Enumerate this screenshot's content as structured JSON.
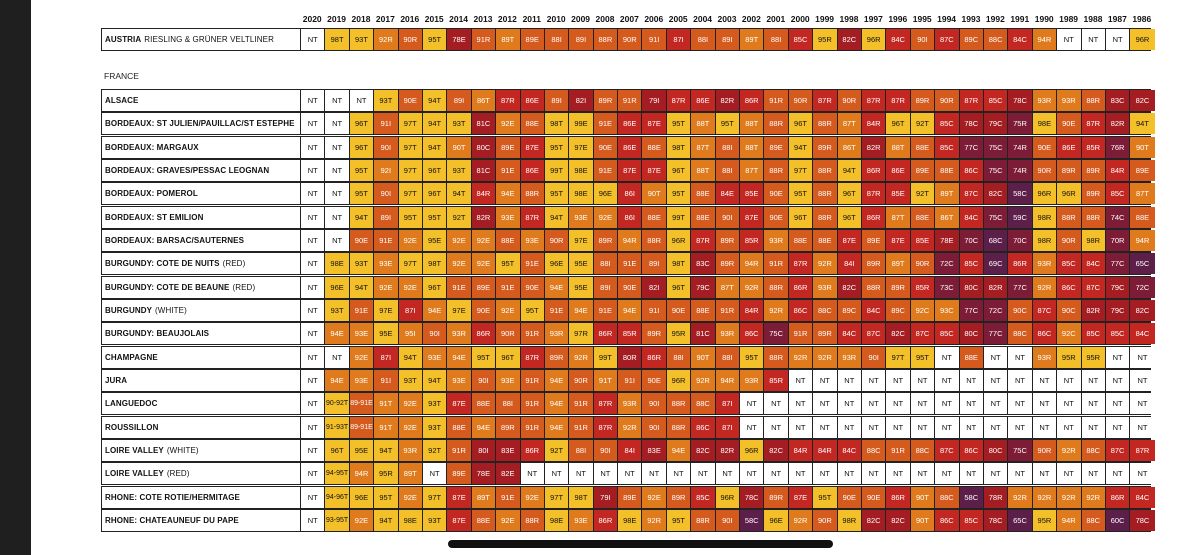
{
  "years": [
    "2020",
    "2019",
    "2018",
    "2017",
    "2016",
    "2015",
    "2014",
    "2013",
    "2012",
    "2011",
    "2010",
    "2009",
    "2008",
    "2007",
    "2006",
    "2005",
    "2004",
    "2003",
    "2002",
    "2001",
    "2000",
    "1999",
    "1998",
    "1997",
    "1996",
    "1995",
    "1994",
    "1993",
    "1992",
    "1991",
    "1990",
    "1989",
    "1988",
    "1987",
    "1986"
  ],
  "sections": {
    "austria": {
      "label": "AUSTRIA",
      "sublabel": "RIESLING & GRÜNER VELTLINER"
    },
    "france": {
      "label": "FRANCE"
    }
  },
  "rows": [
    {
      "name": "ALSACE",
      "sub": "",
      "cells": [
        "NT",
        "NT",
        "NT",
        "93T",
        "90E",
        "94T",
        "89I",
        "86T",
        "87R",
        "86E",
        "89I",
        "82I",
        "89R",
        "91R",
        "79I",
        "87R",
        "86E",
        "82R",
        "86R",
        "91R",
        "90R",
        "87R",
        "90R",
        "87R",
        "87R",
        "89R",
        "90R",
        "87R",
        "85C",
        "78C",
        "93R",
        "93R",
        "88R",
        "83C",
        "82C"
      ]
    },
    {
      "name": "BORDEAUX: ST JULIEN/PAUILLAC/ST ESTEPHE",
      "sub": "",
      "cells": [
        "NT",
        "NT",
        "96T",
        "91I",
        "97T",
        "94T",
        "93T",
        "81C",
        "92E",
        "88E",
        "98T",
        "99E",
        "91E",
        "86E",
        "87E",
        "95T",
        "88T",
        "95T",
        "88T",
        "88R",
        "96T",
        "88R",
        "87T",
        "84R",
        "96T",
        "92T",
        "85C",
        "78C",
        "79C",
        "75R",
        "98E",
        "90E",
        "87R",
        "82R",
        "94T"
      ]
    },
    {
      "name": "BORDEAUX: MARGAUX",
      "sub": "",
      "cells": [
        "NT",
        "NT",
        "96T",
        "90I",
        "97T",
        "94T",
        "90T",
        "80C",
        "89E",
        "87E",
        "95T",
        "97E",
        "90E",
        "86E",
        "88E",
        "98T",
        "87T",
        "88I",
        "88T",
        "89E",
        "94T",
        "89R",
        "86T",
        "82R",
        "88T",
        "88E",
        "85C",
        "77C",
        "75C",
        "74R",
        "90E",
        "86E",
        "85R",
        "76R",
        "90T"
      ]
    },
    {
      "name": "BORDEAUX: GRAVES/PESSAC LEOGNAN",
      "sub": "",
      "cells": [
        "NT",
        "NT",
        "95T",
        "92I",
        "97T",
        "96T",
        "93T",
        "81C",
        "91E",
        "86E",
        "99T",
        "98E",
        "91E",
        "87E",
        "87E",
        "96T",
        "88T",
        "88I",
        "87T",
        "88R",
        "97T",
        "88R",
        "94T",
        "86R",
        "86E",
        "89E",
        "88E",
        "86C",
        "75C",
        "74R",
        "90R",
        "89R",
        "89R",
        "84R",
        "89E"
      ]
    },
    {
      "name": "BORDEAUX: POMEROL",
      "sub": "",
      "cells": [
        "NT",
        "NT",
        "95T",
        "90I",
        "97T",
        "96T",
        "94T",
        "84R",
        "94E",
        "88R",
        "95T",
        "98E",
        "96E",
        "86I",
        "90T",
        "95T",
        "88E",
        "84E",
        "85E",
        "90E",
        "95T",
        "88R",
        "96T",
        "87R",
        "85E",
        "92T",
        "89T",
        "87C",
        "82C",
        "58C",
        "96R",
        "96R",
        "89R",
        "85C",
        "87T"
      ]
    },
    {
      "name": "BORDEAUX: ST EMILION",
      "sub": "",
      "cells": [
        "NT",
        "NT",
        "94T",
        "89I",
        "95T",
        "95T",
        "92T",
        "82R",
        "93E",
        "87R",
        "94T",
        "93E",
        "92E",
        "86I",
        "88E",
        "99T",
        "88E",
        "90I",
        "87E",
        "90E",
        "96T",
        "88R",
        "96T",
        "86R",
        "87T",
        "88E",
        "86T",
        "84C",
        "75C",
        "59C",
        "98R",
        "88R",
        "88R",
        "74C",
        "88E"
      ]
    },
    {
      "name": "BORDEAUX: BARSAC/SAUTERNES",
      "sub": "",
      "cells": [
        "NT",
        "NT",
        "90E",
        "91E",
        "92E",
        "95E",
        "92E",
        "92E",
        "88E",
        "93E",
        "90R",
        "97E",
        "89R",
        "94R",
        "88R",
        "96R",
        "87R",
        "89R",
        "85R",
        "93R",
        "88E",
        "88E",
        "87E",
        "89E",
        "87E",
        "85E",
        "78E",
        "70C",
        "68C",
        "70C",
        "98R",
        "90R",
        "98R",
        "70R",
        "94R"
      ]
    },
    {
      "name": "BURGUNDY: COTE DE NUITS",
      "sub": "(RED)",
      "cells": [
        "NT",
        "98E",
        "93T",
        "93E",
        "97T",
        "98T",
        "92E",
        "92E",
        "95T",
        "91E",
        "96E",
        "95E",
        "88I",
        "91E",
        "89I",
        "98T",
        "83C",
        "89R",
        "94R",
        "91R",
        "87R",
        "92R",
        "84I",
        "89R",
        "89T",
        "90R",
        "72C",
        "85C",
        "69C",
        "86R",
        "93R",
        "85C",
        "84C",
        "77C",
        "65C"
      ]
    },
    {
      "name": "BURGUNDY: COTE DE BEAUNE",
      "sub": "(RED)",
      "cells": [
        "NT",
        "96E",
        "94T",
        "92E",
        "92E",
        "96T",
        "91E",
        "89E",
        "91E",
        "90E",
        "94E",
        "95E",
        "89I",
        "90E",
        "82I",
        "96T",
        "79C",
        "87T",
        "92R",
        "88R",
        "86R",
        "93R",
        "82C",
        "88R",
        "89R",
        "85R",
        "73C",
        "80C",
        "82R",
        "77C",
        "92R",
        "86C",
        "87C",
        "79C",
        "72C"
      ]
    },
    {
      "name": "BURGUNDY",
      "sub": "(WHITE)",
      "cells": [
        "NT",
        "93T",
        "91E",
        "97E",
        "87I",
        "94E",
        "97E",
        "90E",
        "92E",
        "95T",
        "91E",
        "94E",
        "91E",
        "94E",
        "91I",
        "90E",
        "88E",
        "91R",
        "84R",
        "92R",
        "86C",
        "88C",
        "89C",
        "84C",
        "89C",
        "92C",
        "93C",
        "77C",
        "72C",
        "90C",
        "87C",
        "90C",
        "82R",
        "79C",
        "82C"
      ]
    },
    {
      "name": "BURGUNDY: BEAUJOLAIS",
      "sub": "",
      "cells": [
        "NT",
        "94E",
        "93E",
        "95E",
        "95I",
        "90I",
        "93R",
        "86R",
        "90R",
        "91R",
        "93R",
        "97R",
        "86R",
        "85R",
        "89R",
        "95R",
        "81C",
        "93R",
        "86C",
        "75C",
        "91R",
        "89R",
        "84C",
        "87C",
        "82C",
        "87C",
        "85C",
        "80C",
        "77C",
        "88C",
        "86C",
        "92C",
        "85C",
        "85C",
        "84C"
      ]
    },
    {
      "name": "CHAMPAGNE",
      "sub": "",
      "cells": [
        "NT",
        "NT",
        "92E",
        "87I",
        "94T",
        "93E",
        "94E",
        "95T",
        "96T",
        "87R",
        "89R",
        "92R",
        "99T",
        "80R",
        "86R",
        "88I",
        "90T",
        "88I",
        "95T",
        "88R",
        "92R",
        "92R",
        "93R",
        "90I",
        "97T",
        "95T",
        "NT",
        "88E",
        "NT",
        "NT",
        "93R",
        "95R",
        "95R",
        "NT",
        "NT"
      ]
    },
    {
      "name": "JURA",
      "sub": "",
      "cells": [
        "NT",
        "94E",
        "93E",
        "91I",
        "93T",
        "94T",
        "93E",
        "90I",
        "93E",
        "91R",
        "94E",
        "90R",
        "91T",
        "91I",
        "90E",
        "96R",
        "92R",
        "94R",
        "93R",
        "85R",
        "NT",
        "NT",
        "NT",
        "NT",
        "NT",
        "NT",
        "NT",
        "NT",
        "NT",
        "NT",
        "NT",
        "NT",
        "NT",
        "NT",
        "NT"
      ]
    },
    {
      "name": "LANGUEDOC",
      "sub": "",
      "cells": [
        "NT",
        "90-92T",
        "89-91E",
        "91T",
        "92E",
        "93T",
        "87E",
        "88E",
        "88I",
        "91R",
        "94E",
        "91R",
        "87R",
        "93R",
        "90I",
        "88R",
        "88C",
        "87I",
        "NT",
        "NT",
        "NT",
        "NT",
        "NT",
        "NT",
        "NT",
        "NT",
        "NT",
        "NT",
        "NT",
        "NT",
        "NT",
        "NT",
        "NT",
        "NT",
        "NT"
      ]
    },
    {
      "name": "ROUSSILLON",
      "sub": "",
      "cells": [
        "NT",
        "91-93T",
        "89-91E",
        "91T",
        "92E",
        "93T",
        "88E",
        "94E",
        "89R",
        "91R",
        "94E",
        "91R",
        "87R",
        "92R",
        "90I",
        "88R",
        "86C",
        "87I",
        "NT",
        "NT",
        "NT",
        "NT",
        "NT",
        "NT",
        "NT",
        "NT",
        "NT",
        "NT",
        "NT",
        "NT",
        "NT",
        "NT",
        "NT",
        "NT",
        "NT"
      ]
    },
    {
      "name": "LOIRE VALLEY",
      "sub": "(WHITE)",
      "cells": [
        "NT",
        "96T",
        "95E",
        "94T",
        "93R",
        "92T",
        "91R",
        "80I",
        "83E",
        "86R",
        "92T",
        "88I",
        "90I",
        "84I",
        "83E",
        "94E",
        "82C",
        "82R",
        "96R",
        "82C",
        "84R",
        "84R",
        "84C",
        "88C",
        "91R",
        "88C",
        "87C",
        "86C",
        "80C",
        "75C",
        "90R",
        "92R",
        "88C",
        "87C",
        "87R"
      ]
    },
    {
      "name": "LOIRE VALLEY",
      "sub": "(RED)",
      "cells": [
        "NT",
        "94-95T",
        "94R",
        "95R",
        "89T",
        "NT",
        "89E",
        "78E",
        "82E",
        "NT",
        "NT",
        "NT",
        "NT",
        "NT",
        "NT",
        "NT",
        "NT",
        "NT",
        "NT",
        "NT",
        "NT",
        "NT",
        "NT",
        "NT",
        "NT",
        "NT",
        "NT",
        "NT",
        "NT",
        "NT",
        "NT",
        "NT",
        "NT",
        "NT",
        "NT"
      ]
    },
    {
      "name": "RHONE: COTE ROTIE/HERMITAGE",
      "sub": "",
      "cells": [
        "NT",
        "94-96T",
        "96E",
        "95T",
        "92E",
        "97T",
        "87E",
        "89T",
        "91E",
        "92E",
        "97T",
        "98T",
        "79I",
        "89E",
        "92E",
        "89R",
        "85C",
        "96R",
        "78C",
        "89R",
        "87E",
        "95T",
        "90E",
        "90E",
        "86R",
        "90T",
        "88C",
        "58C",
        "78R",
        "92R",
        "92R",
        "92R",
        "92R",
        "86R",
        "84C"
      ]
    },
    {
      "name": "RHONE: CHATEAUNEUF DU PAPE",
      "sub": "",
      "cells": [
        "NT",
        "93-95T",
        "92E",
        "94T",
        "98E",
        "93T",
        "87E",
        "88E",
        "92E",
        "88R",
        "98E",
        "93E",
        "86R",
        "98E",
        "92R",
        "95T",
        "88R",
        "90I",
        "58C",
        "96E",
        "92R",
        "90R",
        "98R",
        "82C",
        "82C",
        "90T",
        "86C",
        "85C",
        "78C",
        "65C",
        "95R",
        "94R",
        "88C",
        "60C",
        "78C"
      ]
    }
  ],
  "austria_cells": [
    "NT",
    "98T",
    "93T",
    "92R",
    "90R",
    "95T",
    "78E",
    "91R",
    "89T",
    "89E",
    "88I",
    "89I",
    "88R",
    "90R",
    "91I",
    "87I",
    "88I",
    "89I",
    "89T",
    "88I",
    "85C",
    "95R",
    "82C",
    "96R",
    "84C",
    "90I",
    "87C",
    "89C",
    "88C",
    "84C",
    "94R",
    "NT",
    "NT",
    "NT",
    "96R"
  ],
  "legend_colors": {
    "NT": "#ffffff",
    "T_high": "#f4c02a",
    "E": "#e07b1d",
    "I": "#d55a1e",
    "R": "#c32722",
    "C": "#a31d22",
    "low": "#7d1c36"
  }
}
